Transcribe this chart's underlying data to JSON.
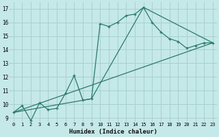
{
  "xlabel": "Humidex (Indice chaleur)",
  "background_color": "#c5e8e8",
  "grid_color": "#a8d0d0",
  "line_color": "#2a7a68",
  "xlim": [
    -0.5,
    23.5
  ],
  "ylim": [
    8.7,
    17.5
  ],
  "xticks": [
    0,
    1,
    2,
    3,
    4,
    5,
    6,
    7,
    8,
    9,
    10,
    11,
    12,
    13,
    14,
    15,
    16,
    17,
    18,
    19,
    20,
    21,
    22,
    23
  ],
  "yticks": [
    9,
    10,
    11,
    12,
    13,
    14,
    15,
    16,
    17
  ],
  "line1_x": [
    0,
    1,
    2,
    3,
    4,
    5,
    6,
    7,
    8,
    9,
    10,
    11,
    12,
    13,
    14,
    15,
    16,
    17,
    18,
    19,
    20,
    21,
    22,
    23
  ],
  "line1_y": [
    9.4,
    9.9,
    8.8,
    10.1,
    9.6,
    9.7,
    10.8,
    12.1,
    10.3,
    10.4,
    15.9,
    15.7,
    16.0,
    16.5,
    16.6,
    17.1,
    16.0,
    15.3,
    14.8,
    14.6,
    14.1,
    14.3,
    14.5,
    14.5
  ],
  "line2_x": [
    0,
    9,
    15,
    23
  ],
  "line2_y": [
    9.4,
    10.4,
    17.1,
    14.5
  ],
  "line3_x": [
    0,
    23
  ],
  "line3_y": [
    9.4,
    14.5
  ]
}
